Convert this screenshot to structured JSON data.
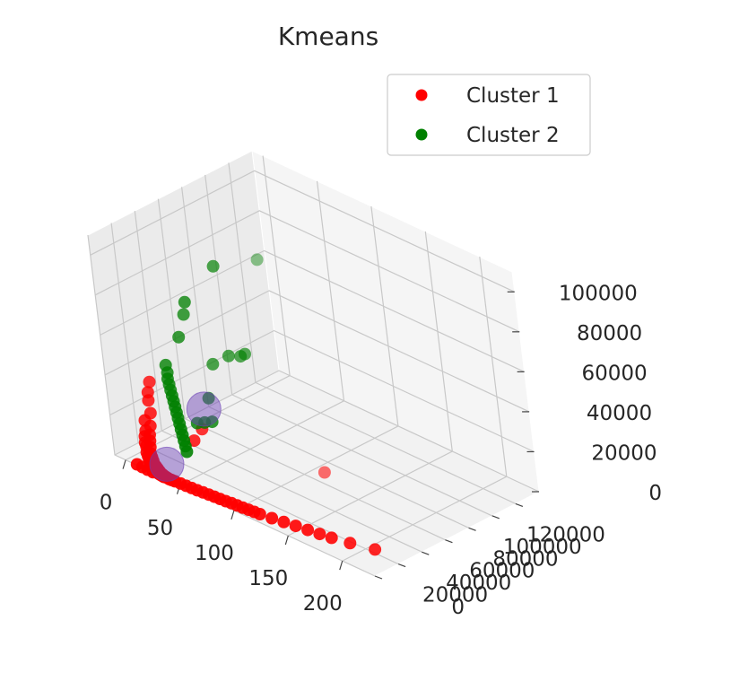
{
  "chart_data": {
    "type": "scatter",
    "title": "Kmeans",
    "projection": "3d",
    "legend_position": "top-right",
    "grid": true,
    "xlim": [
      -10,
      230
    ],
    "ylim": [
      0,
      140000
    ],
    "zlim": [
      0,
      110000
    ],
    "x_ticks": [
      "0",
      "50",
      "100",
      "150",
      "200"
    ],
    "y_ticks": [
      "0",
      "20000",
      "40000",
      "60000",
      "80000",
      "100000",
      "120000"
    ],
    "z_ticks": [
      "0",
      "20000",
      "40000",
      "60000",
      "80000",
      "100000"
    ],
    "series": [
      {
        "name": "Cluster 1",
        "color": "#ff0000",
        "points": [
          [
            5,
            20000,
            25000
          ],
          [
            8,
            18000,
            20000
          ],
          [
            10,
            15000,
            15000
          ],
          [
            12,
            12000,
            12000
          ],
          [
            14,
            10000,
            10000
          ],
          [
            16,
            8000,
            8000
          ],
          [
            18,
            6000,
            6000
          ],
          [
            20,
            5000,
            5000
          ],
          [
            22,
            4000,
            4000
          ],
          [
            24,
            3000,
            3000
          ],
          [
            26,
            2500,
            2500
          ],
          [
            28,
            2000,
            2000
          ],
          [
            30,
            1500,
            1500
          ],
          [
            32,
            1000,
            1000
          ],
          [
            34,
            800,
            800
          ],
          [
            36,
            600,
            600
          ],
          [
            38,
            500,
            500
          ],
          [
            40,
            400,
            400
          ],
          [
            6,
            14000,
            12000
          ],
          [
            7,
            12000,
            10000
          ],
          [
            9,
            10000,
            8000
          ],
          [
            11,
            9000,
            7000
          ],
          [
            13,
            7000,
            5000
          ],
          [
            15,
            6000,
            4000
          ],
          [
            17,
            5000,
            3000
          ],
          [
            19,
            4000,
            2000
          ],
          [
            21,
            3000,
            1500
          ],
          [
            23,
            2000,
            1000
          ],
          [
            25,
            1500,
            800
          ],
          [
            27,
            1000,
            600
          ],
          [
            29,
            800,
            500
          ],
          [
            31,
            600,
            400
          ],
          [
            33,
            500,
            300
          ],
          [
            35,
            400,
            200
          ],
          [
            42,
            500,
            400
          ],
          [
            45,
            600,
            500
          ],
          [
            50,
            800,
            600
          ],
          [
            55,
            900,
            700
          ],
          [
            60,
            1000,
            800
          ],
          [
            65,
            1200,
            900
          ],
          [
            70,
            1500,
            1000
          ],
          [
            75,
            1800,
            1100
          ],
          [
            80,
            2000,
            1200
          ],
          [
            85,
            2200,
            1300
          ],
          [
            90,
            2500,
            1400
          ],
          [
            95,
            2800,
            1500
          ],
          [
            100,
            3000,
            1600
          ],
          [
            105,
            3200,
            1700
          ],
          [
            110,
            3500,
            1800
          ],
          [
            115,
            3800,
            1900
          ],
          [
            120,
            4000,
            2000
          ],
          [
            130,
            5000,
            2200
          ],
          [
            140,
            6000,
            2500
          ],
          [
            150,
            7000,
            2800
          ],
          [
            160,
            8000,
            3000
          ],
          [
            170,
            9000,
            3200
          ],
          [
            180,
            10000,
            3500
          ],
          [
            195,
            12000,
            4000
          ],
          [
            215,
            15000,
            5000
          ],
          [
            120,
            60000,
            6000
          ],
          [
            48,
            25000,
            20000
          ],
          [
            45,
            20000,
            15000
          ],
          [
            10,
            500,
            200
          ],
          [
            15,
            400,
            150
          ],
          [
            20,
            300,
            100
          ],
          [
            25,
            250,
            80
          ],
          [
            4,
            16000,
            16000
          ],
          [
            3,
            22000,
            28000
          ],
          [
            2,
            25000,
            32000
          ]
        ]
      },
      {
        "name": "Cluster 2",
        "color": "#008000",
        "points": [
          [
            20,
            25000,
            45000
          ],
          [
            22,
            24000,
            42000
          ],
          [
            24,
            22000,
            40000
          ],
          [
            26,
            21000,
            38000
          ],
          [
            28,
            20000,
            36000
          ],
          [
            30,
            19000,
            34000
          ],
          [
            32,
            18000,
            32000
          ],
          [
            34,
            17000,
            30000
          ],
          [
            36,
            16000,
            28000
          ],
          [
            38,
            15000,
            26000
          ],
          [
            40,
            14000,
            24000
          ],
          [
            42,
            13000,
            22000
          ],
          [
            44,
            12000,
            20000
          ],
          [
            46,
            11000,
            18000
          ],
          [
            48,
            10000,
            16000
          ],
          [
            50,
            9000,
            14000
          ],
          [
            30,
            30000,
            60000
          ],
          [
            35,
            32000,
            72000
          ],
          [
            40,
            30000,
            80000
          ],
          [
            60,
            40000,
            100000
          ],
          [
            55,
            80000,
            90000
          ],
          [
            62,
            42000,
            55000
          ],
          [
            70,
            45000,
            56000
          ],
          [
            72,
            47000,
            57000
          ],
          [
            48,
            40000,
            48000
          ],
          [
            50,
            20000,
            25000
          ],
          [
            55,
            22000,
            26000
          ],
          [
            60,
            24000,
            27000
          ],
          [
            52,
            30000,
            35000
          ]
        ]
      }
    ],
    "centroids": [
      {
        "color": "#6a3fb5",
        "point": [
          40,
          35000,
          25000
        ]
      },
      {
        "color": "#6a3fb5",
        "point": [
          30,
          8000,
          3000
        ]
      }
    ]
  }
}
